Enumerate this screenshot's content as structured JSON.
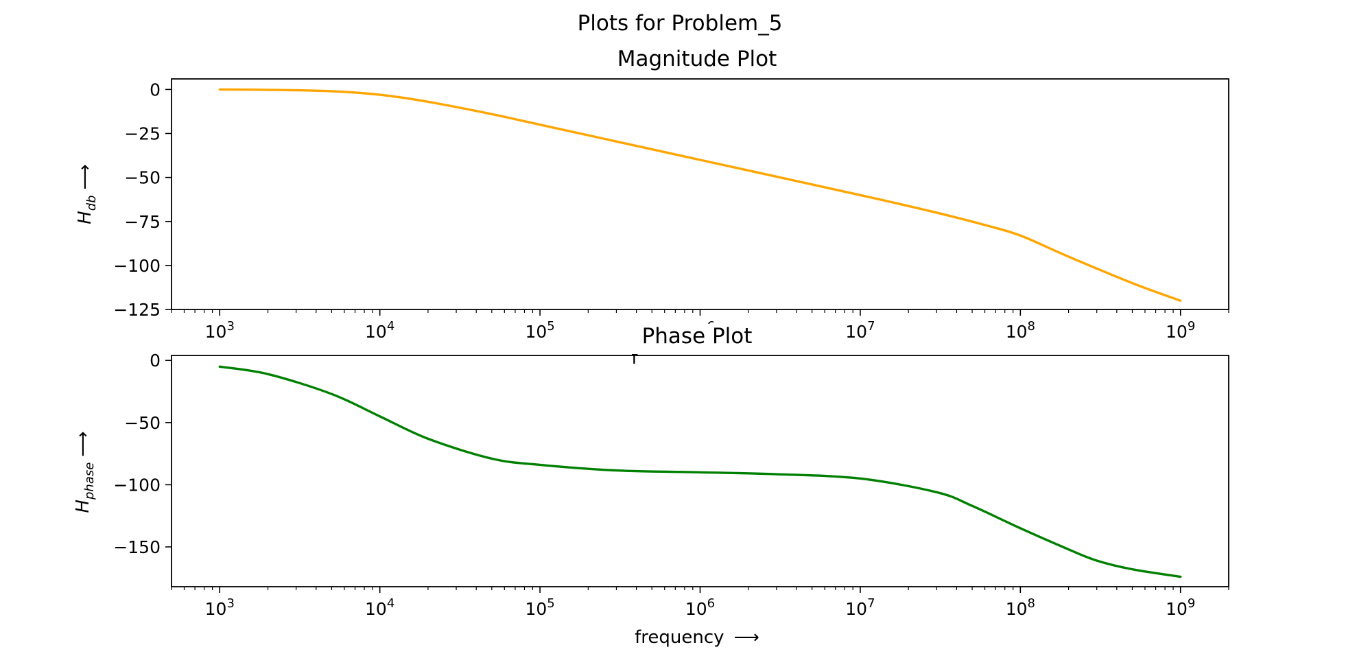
{
  "figure": {
    "suptitle": "Plots for Problem_5"
  },
  "colors": {
    "magnitude_line": "#ffa500",
    "phase_line": "#008000",
    "axes": "#000000",
    "background": "#ffffff"
  },
  "chart_data": [
    {
      "type": "line",
      "title": "Magnitude Plot",
      "xlabel": "f",
      "ylabel": {
        "base": "H",
        "subscript": "db",
        "arrow": "⟶"
      },
      "xscale": "log",
      "xlim": [
        500,
        2000000000
      ],
      "ylim": [
        -125,
        6
      ],
      "xticks": [
        {
          "value": 1000,
          "base": "10",
          "exp": "3"
        },
        {
          "value": 10000,
          "base": "10",
          "exp": "4"
        },
        {
          "value": 100000,
          "base": "10",
          "exp": "5"
        },
        {
          "value": 1000000,
          "base": "10",
          "exp": "6"
        },
        {
          "value": 10000000,
          "base": "10",
          "exp": "7"
        },
        {
          "value": 100000000,
          "base": "10",
          "exp": "8"
        },
        {
          "value": 1000000000,
          "base": "10",
          "exp": "9"
        }
      ],
      "yticks": [
        {
          "value": 0,
          "label": "0"
        },
        {
          "value": -25,
          "label": "−25"
        },
        {
          "value": -50,
          "label": "−50"
        },
        {
          "value": -75,
          "label": "−75"
        },
        {
          "value": -100,
          "label": "−100"
        },
        {
          "value": -125,
          "label": "−125"
        }
      ],
      "grid": false,
      "series": [
        {
          "color": "#ffa500",
          "x": [
            1000,
            2000,
            5000,
            10000,
            20000,
            50000,
            100000,
            1000000,
            10000000,
            30000000,
            60000000,
            100000000,
            200000000,
            500000000,
            1000000000
          ],
          "y": [
            0,
            -0.2,
            -1,
            -3,
            -7,
            -14,
            -20,
            -40,
            -60,
            -70,
            -77,
            -83,
            -95,
            -110,
            -120
          ]
        }
      ]
    },
    {
      "type": "line",
      "title": "Phase Plot",
      "xlabel": "frequency",
      "xlabel_arrow": "⟶",
      "ylabel": {
        "base": "H",
        "subscript": "phase",
        "arrow": "⟶"
      },
      "xscale": "log",
      "xlim": [
        500,
        2000000000
      ],
      "ylim": [
        -182,
        4
      ],
      "xticks": [
        {
          "value": 1000,
          "base": "10",
          "exp": "3"
        },
        {
          "value": 10000,
          "base": "10",
          "exp": "4"
        },
        {
          "value": 100000,
          "base": "10",
          "exp": "5"
        },
        {
          "value": 1000000,
          "base": "10",
          "exp": "6"
        },
        {
          "value": 10000000,
          "base": "10",
          "exp": "7"
        },
        {
          "value": 100000000,
          "base": "10",
          "exp": "8"
        },
        {
          "value": 1000000000,
          "base": "10",
          "exp": "9"
        }
      ],
      "yticks": [
        {
          "value": 0,
          "label": "0"
        },
        {
          "value": -50,
          "label": "−50"
        },
        {
          "value": -100,
          "label": "−100"
        },
        {
          "value": -150,
          "label": "−150"
        }
      ],
      "grid": false,
      "series": [
        {
          "color": "#008000",
          "x": [
            1000,
            2000,
            5000,
            10000,
            20000,
            50000,
            100000,
            300000,
            1000000,
            3000000,
            10000000,
            30000000,
            50000000,
            100000000,
            200000000,
            300000000,
            500000000,
            1000000000
          ],
          "y": [
            -5,
            -11,
            -27,
            -45,
            -63,
            -79,
            -84,
            -88.5,
            -90,
            -91.5,
            -95,
            -106,
            -117,
            -135,
            -152,
            -161,
            -168,
            -174
          ]
        }
      ]
    }
  ]
}
